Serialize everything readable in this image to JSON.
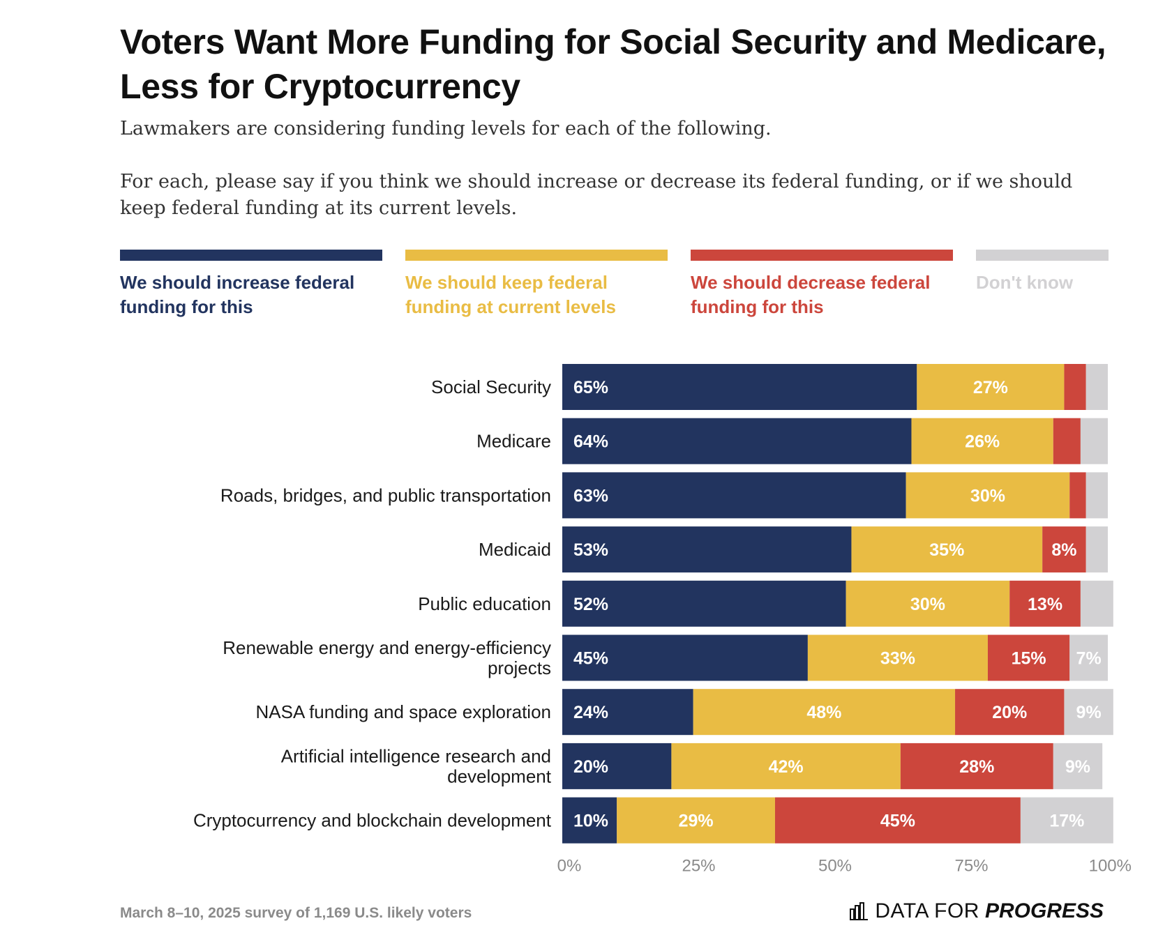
{
  "title": "Voters Want More Funding for Social Security and Medicare, Less for Cryptocurrency",
  "subtitle_1": "Lawmakers are considering funding levels for each of the following.",
  "subtitle_2": "For each, please say if you think we should increase or decrease its federal funding, or if we should keep federal funding at its current levels.",
  "legend": [
    {
      "label": "We should increase federal funding for this",
      "color": "#22345f"
    },
    {
      "label": "We should keep federal funding at current levels",
      "color": "#e9bc44"
    },
    {
      "label": "We should decrease federal funding for this",
      "color": "#cc463c"
    },
    {
      "label": "Don't know",
      "color": "#d2d1d3"
    }
  ],
  "chart_data": {
    "type": "bar",
    "orientation": "horizontal",
    "stacked": true,
    "xlim": [
      0,
      100
    ],
    "x_ticks": [
      "0%",
      "25%",
      "50%",
      "75%",
      "100%"
    ],
    "categories": [
      "Social Security",
      "Medicare",
      "Roads, bridges, and public transportation",
      "Medicaid",
      "Public education",
      "Renewable energy and energy-efficiency projects",
      "NASA funding and space exploration",
      "Artificial intelligence research and development",
      "Cryptocurrency and blockchain development"
    ],
    "series": [
      {
        "name": "We should increase federal funding for this",
        "color": "#22345f",
        "values": [
          65,
          64,
          63,
          53,
          52,
          45,
          24,
          20,
          10
        ]
      },
      {
        "name": "We should keep federal funding at current levels",
        "color": "#e9bc44",
        "values": [
          27,
          26,
          30,
          35,
          30,
          33,
          48,
          42,
          29
        ]
      },
      {
        "name": "We should decrease federal funding for this",
        "color": "#cc463c",
        "values": [
          4,
          5,
          3,
          8,
          13,
          15,
          20,
          28,
          45
        ]
      },
      {
        "name": "Don't know",
        "color": "#d2d1d3",
        "values": [
          4,
          5,
          4,
          4,
          6,
          7,
          9,
          9,
          17
        ]
      }
    ],
    "labels_shown": [
      [
        "65%",
        "27%",
        "",
        ""
      ],
      [
        "64%",
        "26%",
        "",
        ""
      ],
      [
        "63%",
        "30%",
        "",
        ""
      ],
      [
        "53%",
        "35%",
        "8%",
        ""
      ],
      [
        "52%",
        "30%",
        "13%",
        ""
      ],
      [
        "45%",
        "33%",
        "15%",
        "7%"
      ],
      [
        "24%",
        "48%",
        "20%",
        "9%"
      ],
      [
        "20%",
        "42%",
        "28%",
        "9%"
      ],
      [
        "10%",
        "29%",
        "45%",
        "17%"
      ]
    ]
  },
  "footnote": "March 8–10, 2025 survey of 1,169 U.S. likely voters",
  "logo": {
    "part1": "DATA FOR",
    "part2": "PROGRESS",
    "icon": "bar-chart-icon"
  }
}
